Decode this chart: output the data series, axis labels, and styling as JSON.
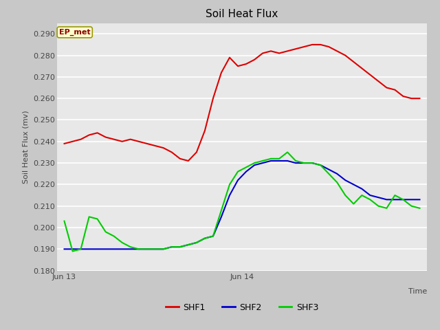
{
  "title": "Soil Heat Flux",
  "ylabel": "Soil Heat Flux (mv)",
  "xlabel": "Time",
  "ylim": [
    0.18,
    0.295
  ],
  "yticks": [
    0.18,
    0.19,
    0.2,
    0.21,
    0.22,
    0.23,
    0.24,
    0.25,
    0.26,
    0.27,
    0.28,
    0.29
  ],
  "annotation": "EP_met",
  "fig_bg_color": "#c8c8c8",
  "plot_bg_color": "#e8e8e8",
  "colors": {
    "SHF1": "#dd0000",
    "SHF2": "#0000cc",
    "SHF3": "#00cc00"
  },
  "SHF1": [
    0.239,
    0.24,
    0.241,
    0.243,
    0.244,
    0.242,
    0.241,
    0.24,
    0.241,
    0.24,
    0.239,
    0.238,
    0.237,
    0.235,
    0.232,
    0.231,
    0.235,
    0.245,
    0.26,
    0.272,
    0.279,
    0.275,
    0.276,
    0.278,
    0.281,
    0.282,
    0.281,
    0.282,
    0.283,
    0.284,
    0.285,
    0.285,
    0.284,
    0.282,
    0.28,
    0.277,
    0.274,
    0.271,
    0.268,
    0.265,
    0.264,
    0.261,
    0.26,
    0.26
  ],
  "SHF2": [
    0.19,
    0.19,
    0.19,
    0.19,
    0.19,
    0.19,
    0.19,
    0.19,
    0.19,
    0.19,
    0.19,
    0.19,
    0.19,
    0.191,
    0.191,
    0.192,
    0.193,
    0.195,
    0.196,
    0.205,
    0.215,
    0.222,
    0.226,
    0.229,
    0.23,
    0.231,
    0.231,
    0.231,
    0.23,
    0.23,
    0.23,
    0.229,
    0.227,
    0.225,
    0.222,
    0.22,
    0.218,
    0.215,
    0.214,
    0.213,
    0.213,
    0.213,
    0.213,
    0.213
  ],
  "SHF3": [
    0.203,
    0.189,
    0.19,
    0.205,
    0.204,
    0.198,
    0.196,
    0.193,
    0.191,
    0.19,
    0.19,
    0.19,
    0.19,
    0.191,
    0.191,
    0.192,
    0.193,
    0.195,
    0.196,
    0.208,
    0.22,
    0.226,
    0.228,
    0.23,
    0.231,
    0.232,
    0.232,
    0.235,
    0.231,
    0.23,
    0.23,
    0.229,
    0.225,
    0.221,
    0.215,
    0.211,
    0.215,
    0.213,
    0.21,
    0.209,
    0.215,
    0.213,
    0.21,
    0.209
  ]
}
